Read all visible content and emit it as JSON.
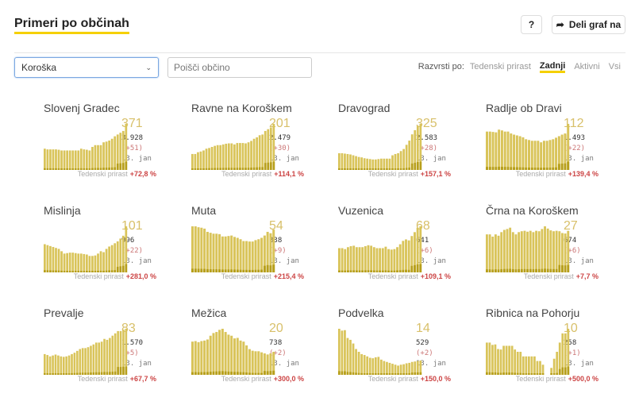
{
  "header": {
    "title": "Primeri po občinah",
    "help_label": "?",
    "share_label": "Deli graf na"
  },
  "filters": {
    "region": "Koroška",
    "search_placeholder": "Poišči občino"
  },
  "sort": {
    "label": "Razvrsti po:",
    "options": [
      "Tedenski prirast",
      "Zadnji",
      "Aktivni",
      "Vsi"
    ],
    "active": "Zadnji"
  },
  "colors": {
    "bar": "#d9c45a",
    "bar_dark": "#a89000",
    "accent": "#f5d000",
    "positive": "#c44"
  },
  "weekly_label": "Tedenski prirast",
  "date_label": "13. jan",
  "municipalities": [
    {
      "name": "Slovenj Gradec",
      "active": "371",
      "total": "3.928",
      "new": "(+51)",
      "weekly": "+72,8 %",
      "bars": [
        60,
        58,
        58,
        58,
        58,
        57,
        55,
        55,
        55,
        55,
        55,
        55,
        55,
        60,
        58,
        57,
        55,
        65,
        70,
        70,
        70,
        78,
        80,
        83,
        88,
        95,
        100,
        105,
        110,
        130
      ]
    },
    {
      "name": "Ravne na Koroškem",
      "active": "201",
      "total": "2.479",
      "new": "(+30)",
      "weekly": "+114,1 %",
      "bars": [
        45,
        45,
        50,
        52,
        55,
        60,
        62,
        65,
        68,
        70,
        70,
        72,
        74,
        75,
        75,
        72,
        76,
        76,
        76,
        75,
        78,
        82,
        88,
        92,
        98,
        100,
        110,
        115,
        120,
        130
      ]
    },
    {
      "name": "Dravograd",
      "active": "325",
      "total": "2.583",
      "new": "(+28)",
      "weekly": "+157,1 %",
      "bars": [
        40,
        40,
        39,
        38,
        37,
        35,
        33,
        31,
        30,
        28,
        27,
        26,
        25,
        25,
        26,
        27,
        27,
        27,
        27,
        35,
        38,
        40,
        45,
        50,
        60,
        70,
        85,
        95,
        105,
        110
      ]
    },
    {
      "name": "Radlje ob Dravi",
      "active": "112",
      "total": "1.493",
      "new": "(+22)",
      "weekly": "+139,4 %",
      "bars": [
        100,
        100,
        99,
        98,
        105,
        103,
        100,
        100,
        95,
        92,
        90,
        88,
        85,
        80,
        78,
        76,
        76,
        76,
        72,
        76,
        76,
        78,
        80,
        84,
        88,
        92,
        95,
        120
      ]
    },
    {
      "name": "Mislinja",
      "active": "101",
      "total": "996",
      "new": "(+22)",
      "weekly": "+281,0 %",
      "bars": [
        60,
        58,
        56,
        54,
        52,
        50,
        45,
        40,
        41,
        42,
        42,
        41,
        40,
        40,
        39,
        38,
        35,
        35,
        36,
        40,
        45,
        43,
        50,
        55,
        58,
        62,
        66,
        72,
        78,
        98
      ]
    },
    {
      "name": "Muta",
      "active": "54",
      "total": "838",
      "new": "(+9)",
      "weekly": "+215,4 %",
      "bars": [
        100,
        100,
        98,
        97,
        95,
        88,
        86,
        84,
        84,
        83,
        78,
        78,
        79,
        80,
        77,
        75,
        72,
        68,
        68,
        67,
        67,
        70,
        72,
        75,
        80,
        88,
        85,
        93
      ]
    },
    {
      "name": "Vuzenica",
      "active": "68",
      "total": "641",
      "new": "(+6)",
      "weekly": "+109,1 %",
      "bars": [
        50,
        50,
        48,
        52,
        54,
        55,
        52,
        52,
        52,
        54,
        56,
        55,
        52,
        50,
        50,
        50,
        53,
        48,
        47,
        48,
        52,
        58,
        65,
        68,
        66,
        75,
        83,
        92,
        95
      ]
    },
    {
      "name": "Črna na Koroškem",
      "active": "27",
      "total": "674",
      "new": "(+6)",
      "weekly": "+7,7 %",
      "bars": [
        85,
        85,
        80,
        85,
        82,
        90,
        95,
        97,
        100,
        90,
        85,
        90,
        92,
        93,
        91,
        93,
        90,
        93,
        92,
        97,
        103,
        98,
        94,
        92,
        93,
        92,
        88,
        87,
        93
      ]
    },
    {
      "name": "Prevalje",
      "active": "83",
      "total": "1.570",
      "new": "(+5)",
      "weekly": "+67,7 %",
      "bars": [
        45,
        43,
        40,
        42,
        44,
        42,
        40,
        39,
        40,
        42,
        45,
        48,
        52,
        56,
        58,
        58,
        60,
        63,
        66,
        70,
        70,
        72,
        78,
        76,
        80,
        85,
        90,
        95,
        95,
        98,
        100
      ]
    },
    {
      "name": "Mežica",
      "active": "20",
      "total": "738",
      "new": "(+2)",
      "weekly": "+300,0 %",
      "bars": [
        62,
        63,
        61,
        63,
        64,
        66,
        73,
        78,
        80,
        84,
        86,
        80,
        75,
        73,
        68,
        69,
        64,
        62,
        55,
        48,
        45,
        44,
        44,
        42,
        40,
        38,
        40,
        43
      ]
    },
    {
      "name": "Podvelka",
      "active": "14",
      "total": "529",
      "new": "(+2)",
      "weekly": "+150,0 %",
      "bars": [
        100,
        96,
        97,
        80,
        76,
        68,
        56,
        50,
        45,
        43,
        40,
        37,
        36,
        38,
        39,
        33,
        30,
        28,
        26,
        24,
        22,
        20,
        22,
        23,
        25,
        26,
        28,
        29,
        30,
        31
      ]
    },
    {
      "name": "Ribnica na Pohorju",
      "active": "10",
      "total": "258",
      "new": "(+1)",
      "weekly": "+500,0 %",
      "bars": [
        70,
        70,
        65,
        66,
        56,
        55,
        63,
        63,
        63,
        63,
        55,
        50,
        50,
        40,
        40,
        40,
        40,
        40,
        30,
        30,
        22,
        0,
        0,
        15,
        35,
        50,
        70,
        90,
        90,
        100
      ]
    }
  ]
}
